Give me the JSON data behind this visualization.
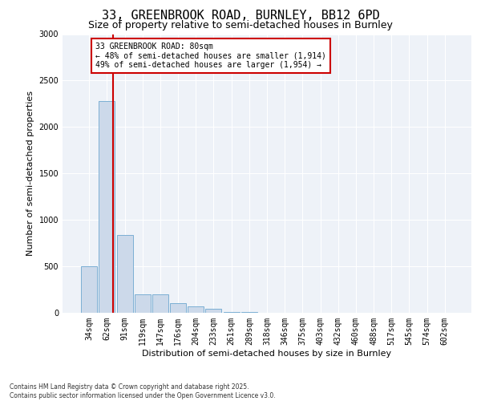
{
  "title_line1": "33, GREENBROOK ROAD, BURNLEY, BB12 6PD",
  "title_line2": "Size of property relative to semi-detached houses in Burnley",
  "xlabel": "Distribution of semi-detached houses by size in Burnley",
  "ylabel": "Number of semi-detached properties",
  "categories": [
    "34sqm",
    "62sqm",
    "91sqm",
    "119sqm",
    "147sqm",
    "176sqm",
    "204sqm",
    "233sqm",
    "261sqm",
    "289sqm",
    "318sqm",
    "346sqm",
    "375sqm",
    "403sqm",
    "432sqm",
    "460sqm",
    "488sqm",
    "517sqm",
    "545sqm",
    "574sqm",
    "602sqm"
  ],
  "values": [
    500,
    2280,
    840,
    200,
    200,
    100,
    65,
    40,
    10,
    5,
    0,
    0,
    0,
    0,
    0,
    0,
    0,
    0,
    0,
    0,
    0
  ],
  "bar_color": "#ccd9ea",
  "bar_edge_color": "#7bafd4",
  "annotation_text": "33 GREENBROOK ROAD: 80sqm\n← 48% of semi-detached houses are smaller (1,914)\n49% of semi-detached houses are larger (1,954) →",
  "annotation_box_color": "#ffffff",
  "annotation_border_color": "#cc0000",
  "ylim": [
    0,
    3000
  ],
  "yticks": [
    0,
    500,
    1000,
    1500,
    2000,
    2500,
    3000
  ],
  "footer_line1": "Contains HM Land Registry data © Crown copyright and database right 2025.",
  "footer_line2": "Contains public sector information licensed under the Open Government Licence v3.0.",
  "bg_color": "#ffffff",
  "plot_bg_color": "#eef2f8",
  "title_fontsize": 11,
  "subtitle_fontsize": 9,
  "tick_fontsize": 7,
  "ylabel_fontsize": 8,
  "xlabel_fontsize": 8,
  "footer_fontsize": 5.5,
  "annot_fontsize": 7,
  "red_line_x": 1.35
}
